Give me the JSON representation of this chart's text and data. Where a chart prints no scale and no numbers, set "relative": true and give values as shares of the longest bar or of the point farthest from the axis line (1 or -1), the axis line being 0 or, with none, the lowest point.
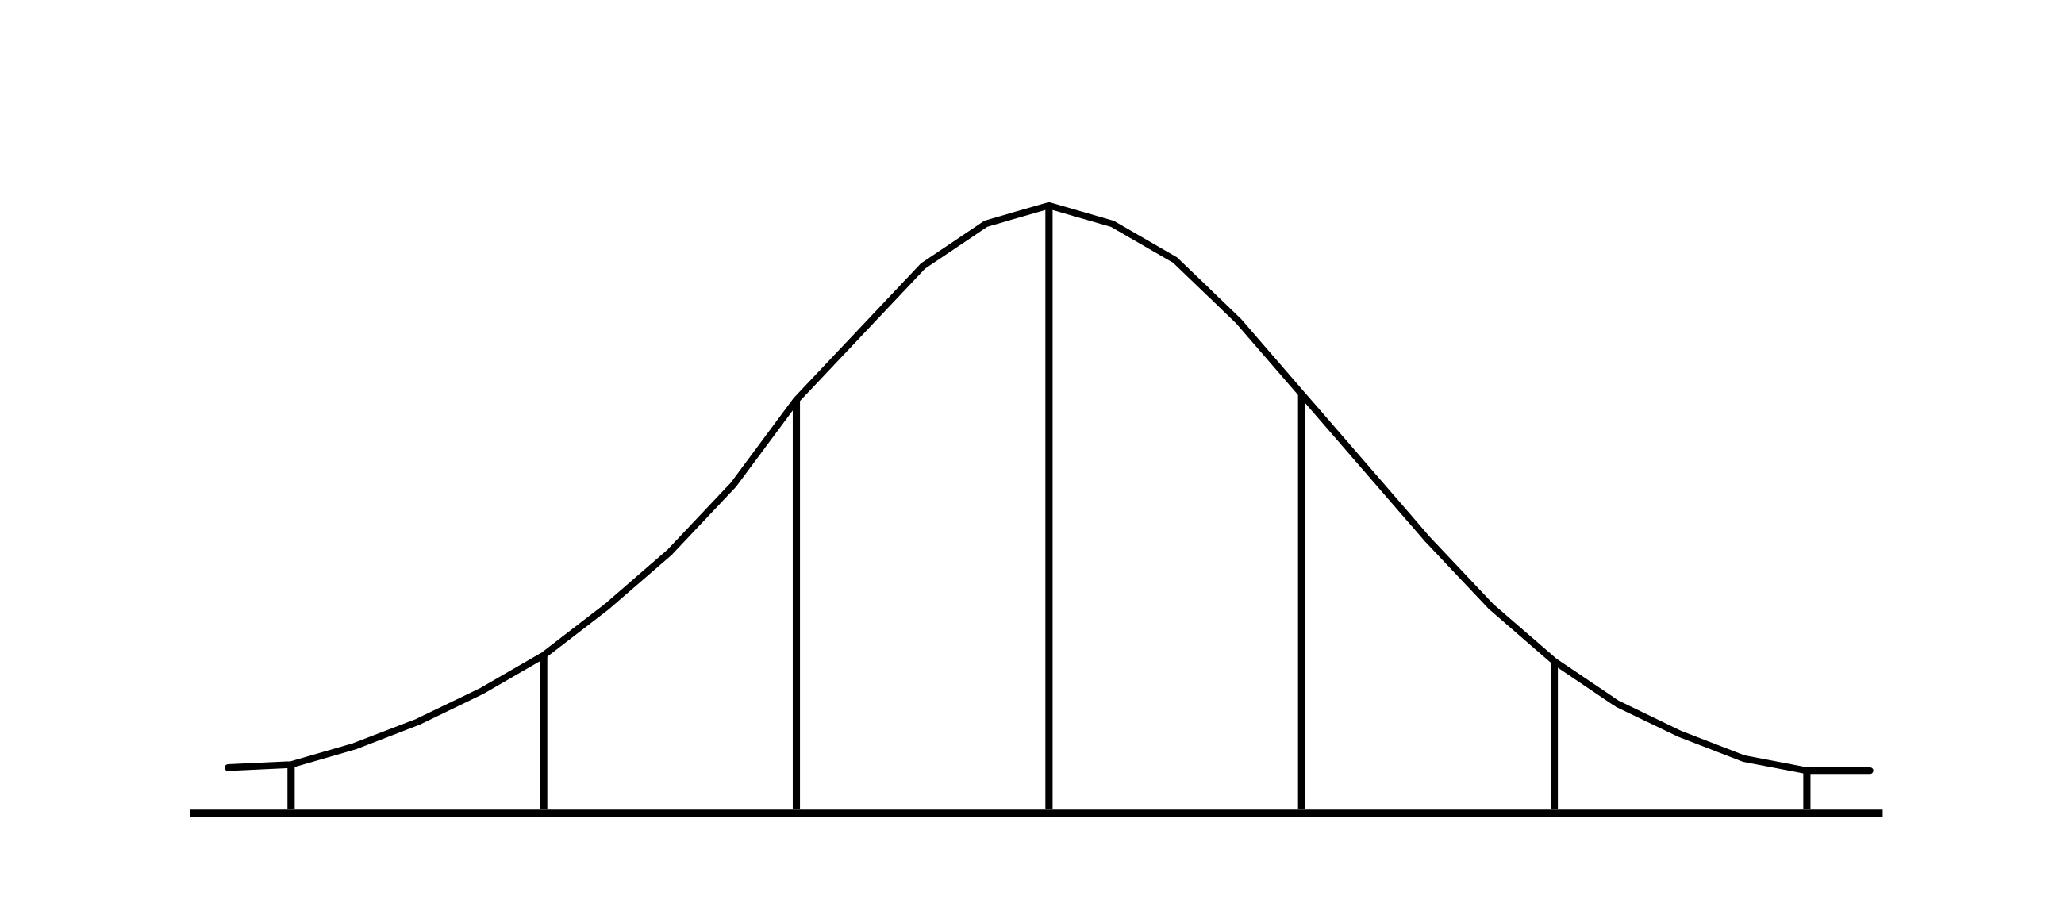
{
  "chart_data": {
    "type": "line",
    "relative": true,
    "tick_labels": false,
    "marker": "none",
    "line_style": "solid",
    "categories": [
      null,
      null,
      null,
      null,
      null,
      null,
      null,
      null,
      null,
      null,
      null,
      null,
      null,
      null,
      null,
      null,
      null,
      null,
      null,
      null,
      null,
      null,
      null,
      null,
      null,
      null,
      null
    ],
    "series": [
      {
        "color": "#000000",
        "values": [
          0.075,
          0.08,
          0.11,
          0.15,
          0.2,
          0.26,
          0.34,
          0.43,
          0.54,
          0.68,
          0.79,
          0.9,
          0.97,
          1.0,
          0.97,
          0.91,
          0.81,
          0.69,
          0.57,
          0.45,
          0.34,
          0.25,
          0.18,
          0.13,
          0.09,
          0.07,
          0.07
        ]
      }
    ]
  }
}
